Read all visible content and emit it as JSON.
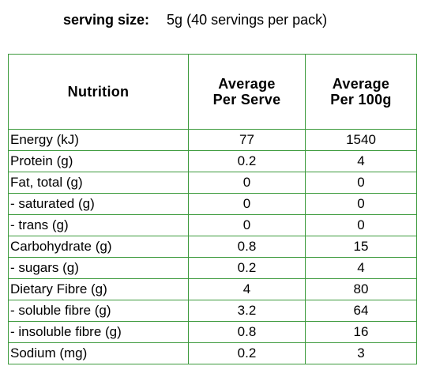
{
  "serving": {
    "label": "serving size:",
    "value": "5g (40 servings per pack)"
  },
  "table": {
    "headers": [
      "Nutrition",
      "Average\nPer Serve",
      "Average\nPer 100g"
    ],
    "rows": [
      [
        "Energy (kJ)",
        "77",
        "1540"
      ],
      [
        "Protein (g)",
        "0.2",
        "4"
      ],
      [
        "Fat, total (g)",
        "0",
        "0"
      ],
      [
        "- saturated (g)",
        "0",
        "0"
      ],
      [
        "- trans (g)",
        "0",
        "0"
      ],
      [
        "Carbohydrate (g)",
        "0.8",
        "15"
      ],
      [
        "- sugars (g)",
        "0.2",
        "4"
      ],
      [
        "Dietary Fibre (g)",
        "4",
        "80"
      ],
      [
        "- soluble fibre (g)",
        "3.2",
        "64"
      ],
      [
        "- insoluble fibre (g)",
        "0.8",
        "16"
      ],
      [
        "Sodium (mg)",
        "0.2",
        "3"
      ]
    ]
  }
}
